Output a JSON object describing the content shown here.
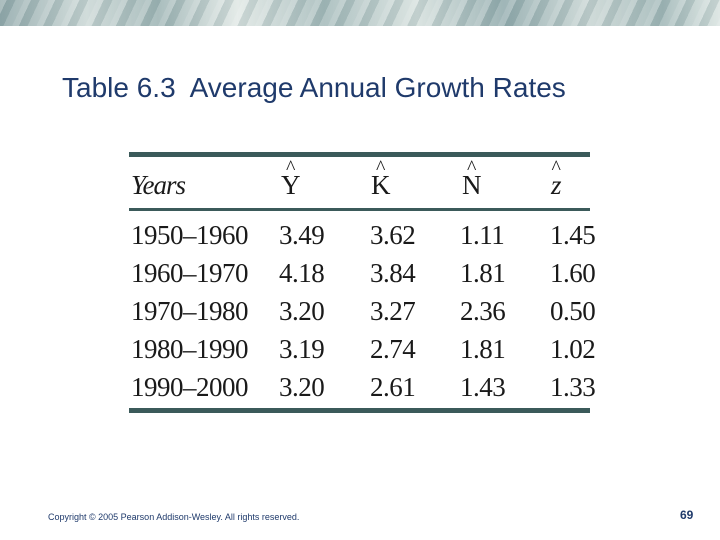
{
  "slide": {
    "title_number": "Table 6.3",
    "title_text": "Average Annual Growth Rates",
    "footer": "Copyright © 2005 Pearson Addison-Wesley. All rights reserved.",
    "page_number": "69"
  },
  "table": {
    "headers": [
      "Years",
      "Y",
      "K",
      "N",
      "z"
    ],
    "rows": [
      [
        "1950–1960",
        "3.49",
        "3.62",
        "1.11",
        "1.45"
      ],
      [
        "1960–1970",
        "4.18",
        "3.84",
        "1.81",
        "1.60"
      ],
      [
        "1970–1980",
        "3.20",
        "3.27",
        "2.36",
        "0.50"
      ],
      [
        "1980–1990",
        "3.19",
        "2.74",
        "1.81",
        "1.02"
      ],
      [
        "1990–2000",
        "3.20",
        "2.61",
        "1.43",
        "1.33"
      ]
    ]
  }
}
